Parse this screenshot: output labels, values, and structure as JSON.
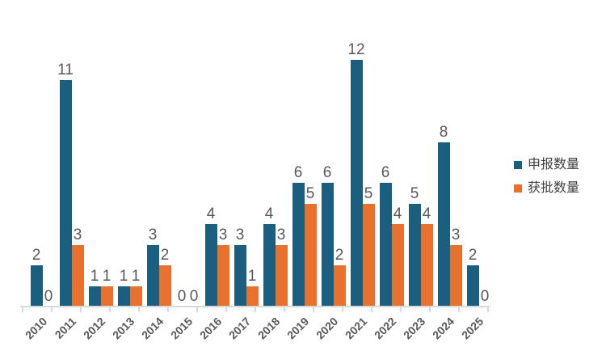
{
  "chart_data": {
    "type": "bar",
    "title": "",
    "xlabel": "",
    "ylabel": "",
    "categories": [
      "2010",
      "2011",
      "2012",
      "2013",
      "2014",
      "2015",
      "2016",
      "2017",
      "2018",
      "2019",
      "2020",
      "2021",
      "2022",
      "2023",
      "2024",
      "2025"
    ],
    "series": [
      {
        "name": "申报数量",
        "color": "#1a5f80",
        "values": [
          2,
          11,
          1,
          1,
          3,
          0,
          4,
          3,
          4,
          6,
          6,
          12,
          6,
          5,
          8,
          2
        ]
      },
      {
        "name": "获批数量",
        "color": "#e8722d",
        "values": [
          0,
          3,
          1,
          1,
          2,
          0,
          3,
          1,
          3,
          5,
          2,
          5,
          4,
          4,
          3,
          0
        ]
      }
    ],
    "ylim": [
      0,
      12
    ],
    "grid": false,
    "value_labels": true,
    "legend_position": "right",
    "colors": {
      "label": "#595959",
      "axis": "#d9d9d9",
      "x_tick_label": "#595959"
    }
  }
}
